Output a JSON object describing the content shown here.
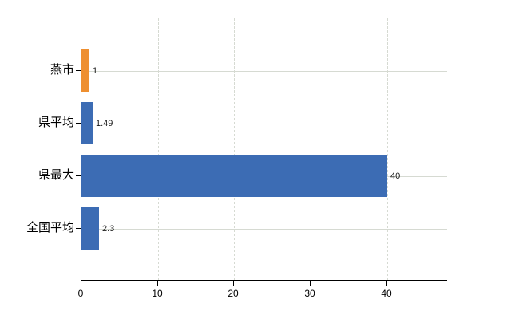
{
  "chart_data": {
    "type": "bar",
    "orientation": "horizontal",
    "title": "",
    "xlabel": "",
    "ylabel": "",
    "categories": [
      "燕市",
      "県平均",
      "県最大",
      "全国平均"
    ],
    "values": [
      1,
      1.49,
      40,
      2.3
    ],
    "value_labels": [
      "1",
      "1.49",
      "40",
      "2.3"
    ],
    "bar_colors": [
      "#ee8f30",
      "#3c6cb4",
      "#3c6cb4",
      "#3c6cb4"
    ],
    "x_ticks": [
      0,
      10,
      20,
      30,
      40
    ],
    "x_tick_labels": [
      "0",
      "10",
      "20",
      "30",
      "40"
    ],
    "xlim": [
      0,
      48
    ],
    "grid": true,
    "legend": "none"
  },
  "colors": {
    "background": "#ffffff",
    "axis": "#000000",
    "gridline": "#d6dad2",
    "frame_top": "#d4d8cf",
    "value_text": "#1a1a1a",
    "label_text": "#000000",
    "bar_blue": "#3c6cb4",
    "bar_orange": "#ee8f30"
  }
}
